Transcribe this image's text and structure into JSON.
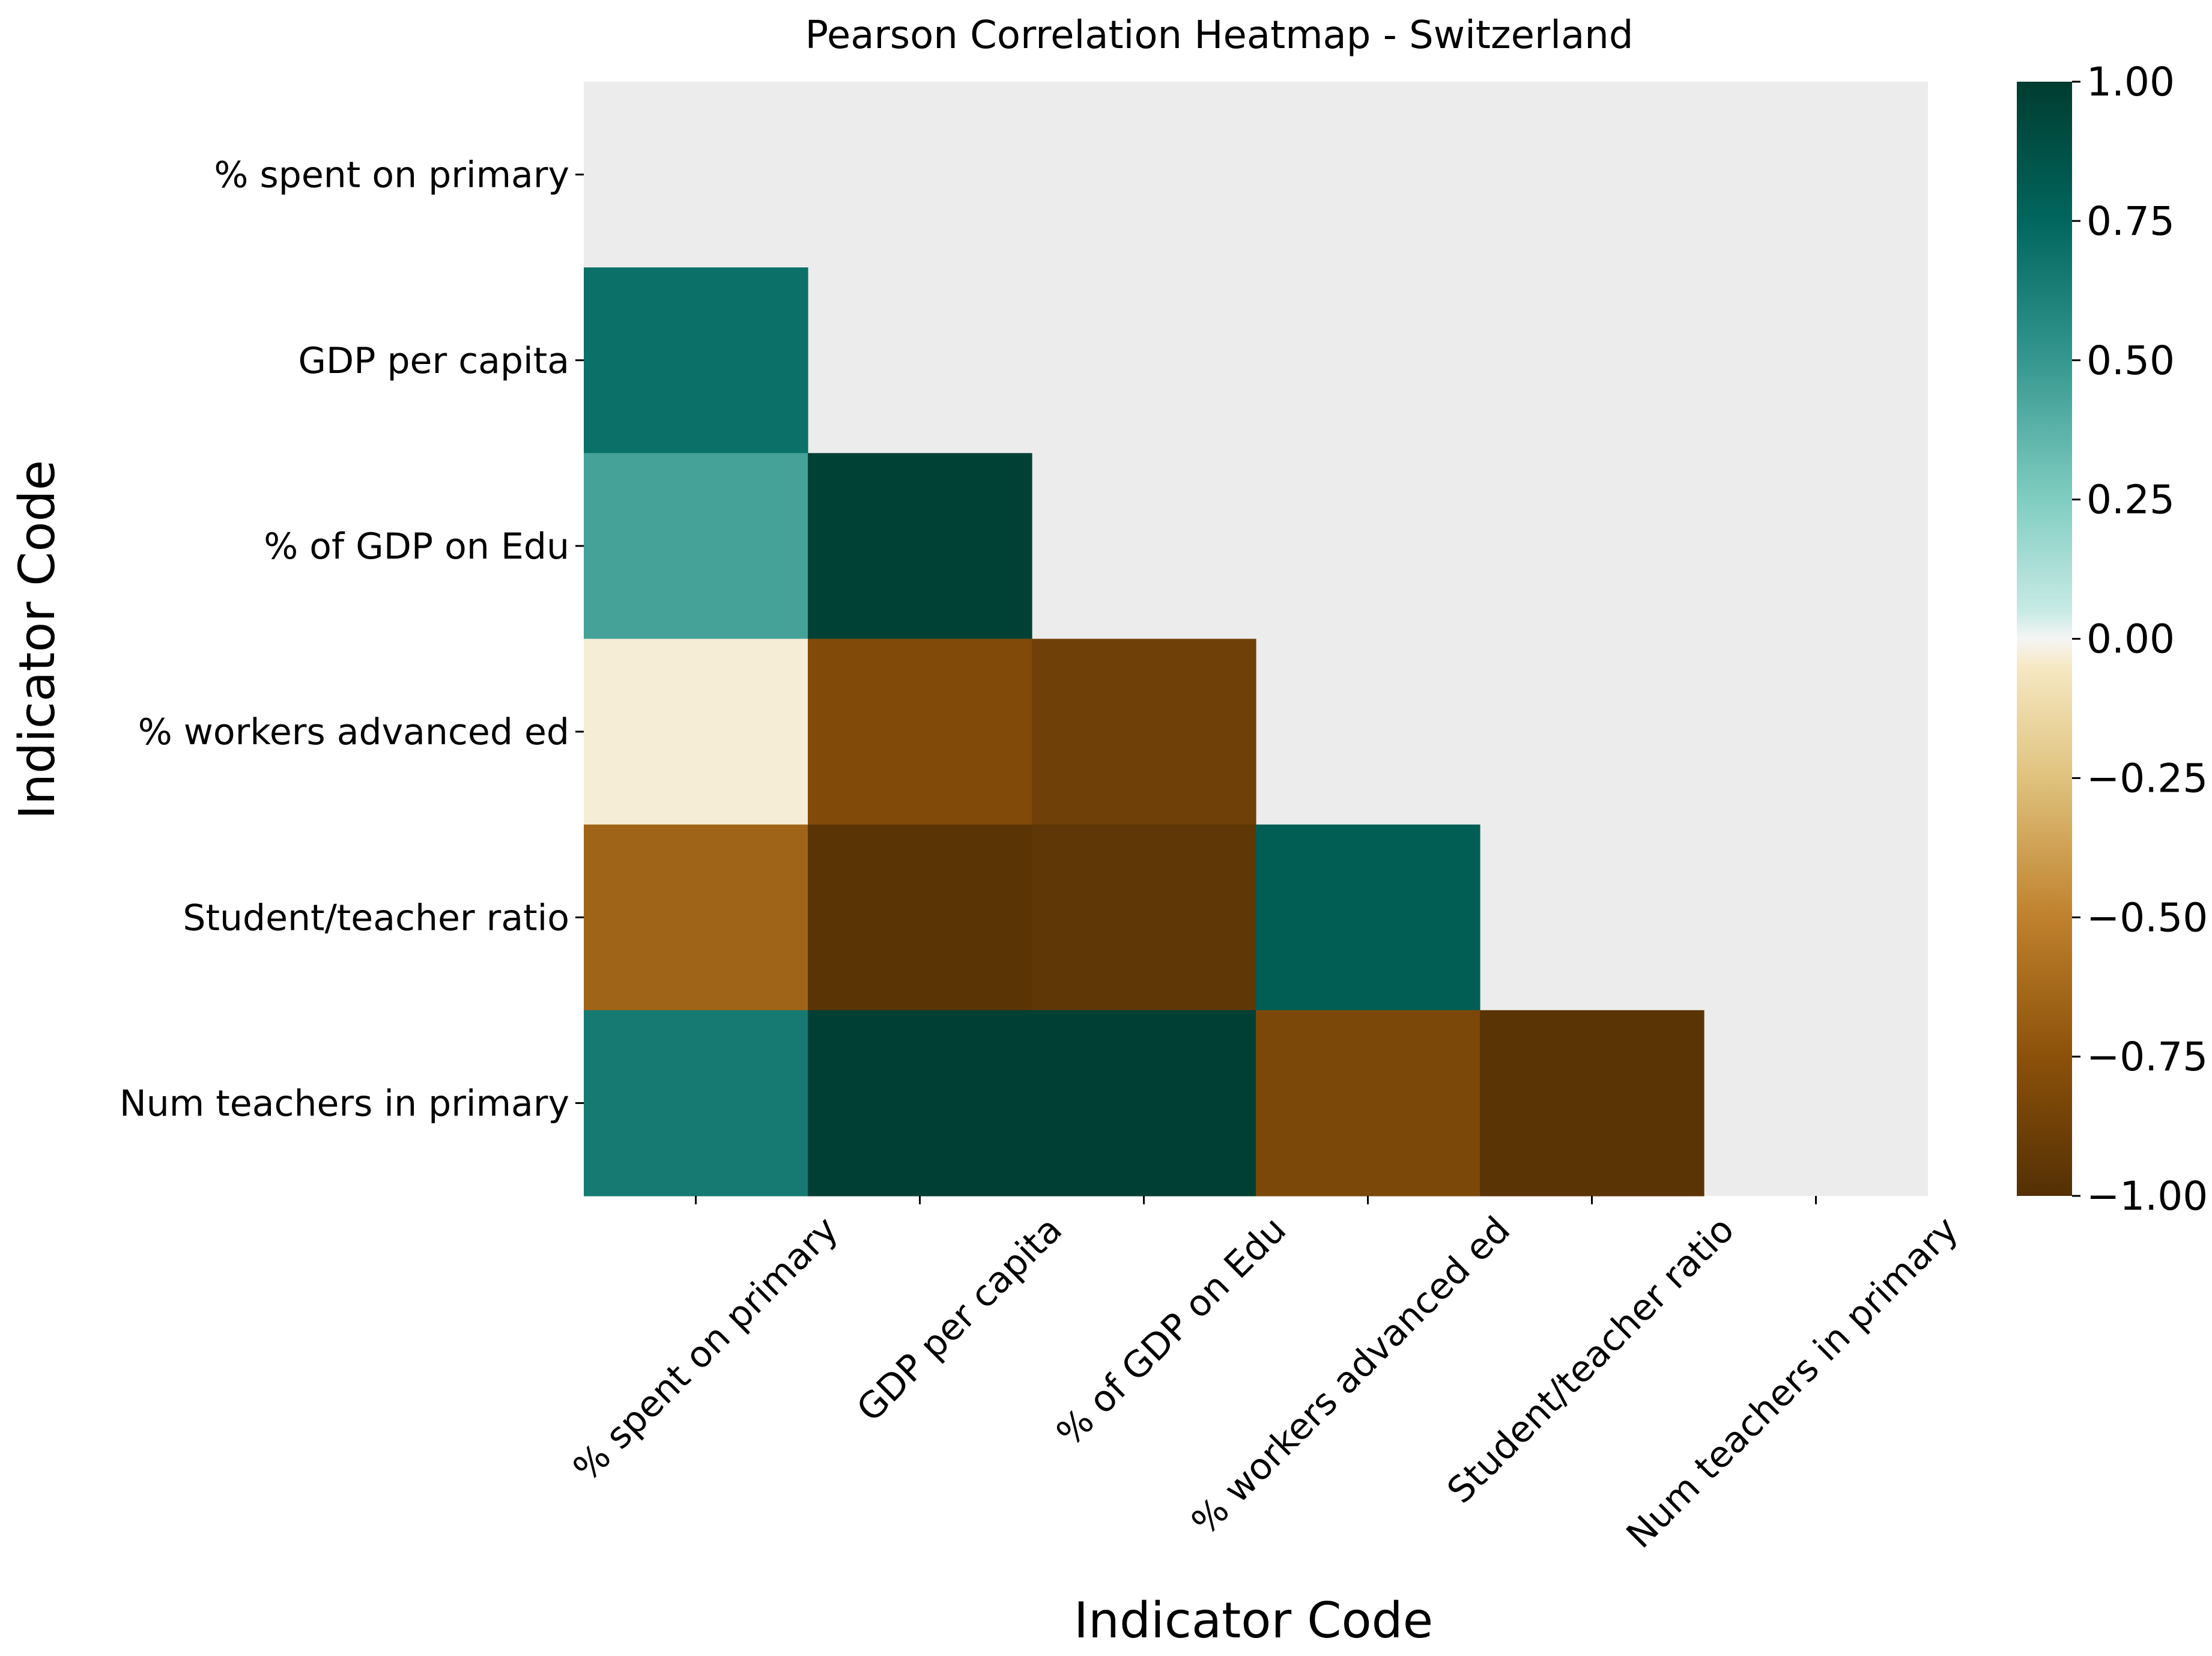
{
  "chart_data": {
    "type": "heatmap",
    "title": "Pearson Correlation Heatmap - Switzerland",
    "xlabel": "Indicator Code",
    "ylabel": "Indicator Code",
    "rows": [
      "% spent on primary",
      "GDP per capita",
      "% of GDP on Edu",
      "% workers advanced ed",
      "Student/teacher ratio",
      "Num teachers in primary"
    ],
    "columns": [
      "% spent on primary",
      "GDP per capita",
      "% of GDP on Edu",
      "% workers advanced ed",
      "Student/teacher ratio",
      "Num teachers in primary"
    ],
    "mask": "upper triangle including diagonal",
    "values": [
      [
        null,
        null,
        null,
        null,
        null,
        null
      ],
      [
        0.7,
        null,
        null,
        null,
        null,
        null
      ],
      [
        0.45,
        0.97,
        null,
        null,
        null,
        null
      ],
      [
        -0.03,
        -0.8,
        -0.88,
        null,
        null,
        null
      ],
      [
        -0.65,
        -0.97,
        -0.95,
        0.8,
        null,
        null
      ],
      [
        0.65,
        0.98,
        0.98,
        -0.82,
        -0.97,
        null
      ]
    ],
    "colorbar": {
      "cmap": "BrBG",
      "vmin": -1.0,
      "vmax": 1.0,
      "ticks": [
        "1.00",
        "0.75",
        "0.50",
        "0.25",
        "0.00",
        "−0.25",
        "−0.50",
        "−0.75",
        "−1.00"
      ]
    },
    "mask_color": "#ececec"
  }
}
